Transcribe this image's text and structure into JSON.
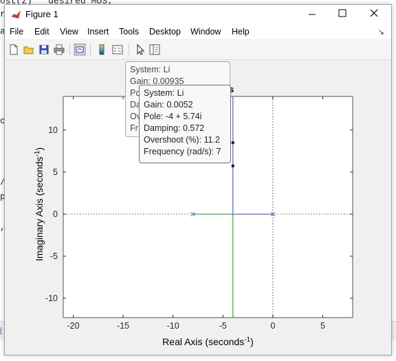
{
  "background": {
    "editor_lines": [
      {
        "text": "ost(z)   desired MOS;"
      },
      {
        "text": "r"
      },
      {
        "text": "a"
      },
      {
        "text": "c"
      },
      {
        "text": "/"
      },
      {
        "text": "p"
      },
      {
        "text": ","
      }
    ],
    "status_glyph": "i"
  },
  "window": {
    "title": "Figure 1",
    "minimize_glyph": "—",
    "maximize_glyph": "☐",
    "close_glyph": "✕"
  },
  "menu": {
    "items": [
      "File",
      "Edit",
      "View",
      "Insert",
      "Tools",
      "Desktop",
      "Window",
      "Help"
    ],
    "overflow_glyph": "↘"
  },
  "toolbar": {
    "icons": [
      "new-figure-icon",
      "open-file-icon",
      "save-icon",
      "print-icon",
      "link-plot-icon",
      "insert-colorbar-icon",
      "insert-legend-icon",
      "pointer-icon",
      "property-inspector-icon"
    ]
  },
  "plot": {
    "title_fragment": "s",
    "xlabel": "Real Axis (seconds",
    "ylabel": "Imaginary Axis (seconds",
    "exponent": "-1",
    "xticks": [
      "-20",
      "-15",
      "-10",
      "-5",
      "0",
      "5"
    ],
    "yticks": [
      "10",
      "5",
      "0",
      "-5",
      "-10"
    ],
    "colors": {
      "branch_blue": "#6b63d6",
      "branch_green": "#4aa34a",
      "pole_marker": "#4a8bd6"
    }
  },
  "chart_data": {
    "type": "scatter",
    "title": "",
    "xlabel": "Real Axis (seconds^-1)",
    "ylabel": "Imaginary Axis (seconds^-1)",
    "xlim": [
      -21,
      8
    ],
    "ylim": [
      -12.3,
      14
    ],
    "grid": false,
    "series": [
      {
        "values": [
          {
            "x": 0,
            "y": 0
          },
          {
            "x": -4,
            "y": 0
          },
          {
            "x": -4,
            "y": 14
          }
        ]
      },
      {
        "values": [
          {
            "x": -8,
            "y": 0
          },
          {
            "x": -4,
            "y": 0
          },
          {
            "x": -4,
            "y": -12.3
          }
        ]
      }
    ],
    "poles": [
      {
        "x": -8,
        "y": 0
      },
      {
        "x": 0,
        "y": 0
      }
    ],
    "datatip_points": [
      {
        "x": -4,
        "y": 8.5
      },
      {
        "x": -4,
        "y": 5.74
      }
    ]
  },
  "datatips": {
    "back": {
      "lines": [
        "System: Li",
        "Gain: 0.00935",
        "Po",
        "Da",
        "Ov",
        "Fr"
      ]
    },
    "front": {
      "lines": [
        "System: Li",
        "Gain: 0.0052",
        "Pole: -4 + 5.74i",
        "Damping: 0.572",
        "Overshoot (%): 11.2",
        "Frequency (rad/s): 7"
      ]
    }
  }
}
